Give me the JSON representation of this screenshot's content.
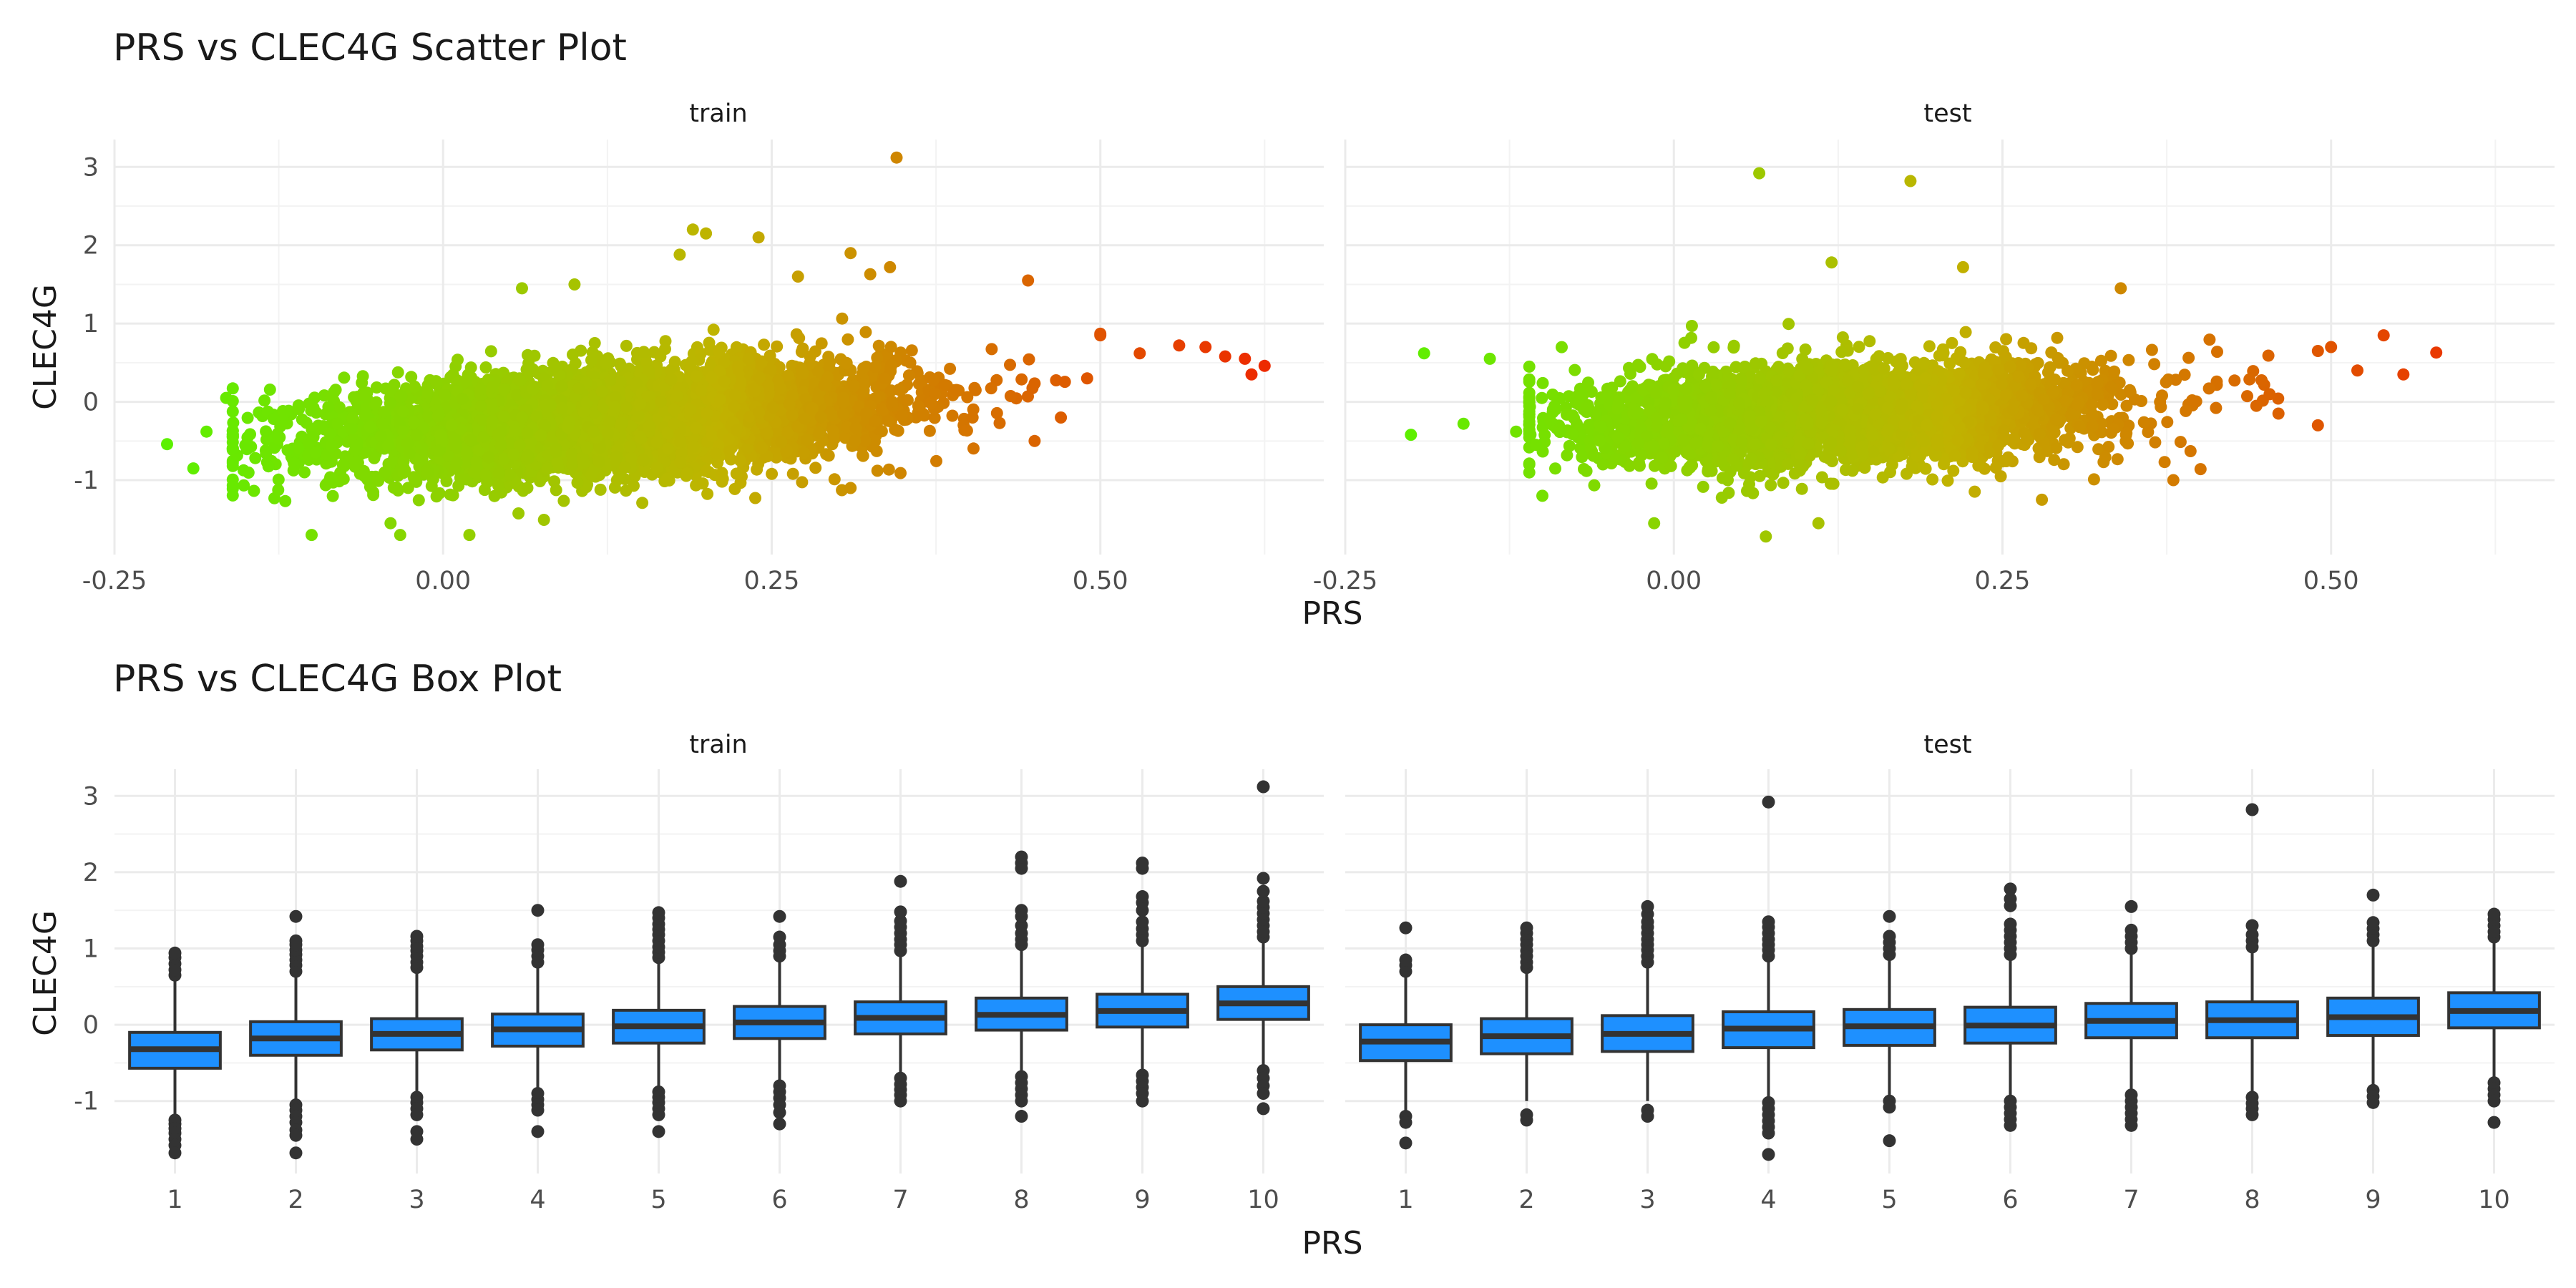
{
  "colors": {
    "low": "#5cf000",
    "mid": "#c0b300",
    "high": "#ee2800",
    "box_fill": "#1e90ff",
    "box_line": "#333333",
    "outlier": "#333333"
  },
  "chart_data": [
    {
      "type": "scatter",
      "title": "PRS vs CLEC4G Scatter Plot",
      "xlabel": "PRS",
      "ylabel": "CLEC4G",
      "xlim": [
        -0.25,
        0.67
      ],
      "ylim": [
        -1.95,
        3.35
      ],
      "x_ticks": [
        -0.25,
        0.0,
        0.25,
        0.5
      ],
      "x_tick_labels": [
        "-0.25",
        "0.00",
        "0.25",
        "0.50"
      ],
      "y_ticks": [
        -1,
        0,
        1,
        2,
        3
      ],
      "y_tick_labels": [
        "-1",
        "0",
        "1",
        "2",
        "3"
      ],
      "grid": true,
      "color_encodes": "PRS",
      "panels": [
        {
          "label": "train",
          "cloud": {
            "n": 5200,
            "x_mean": 0.13,
            "x_sd": 0.105,
            "x_range": [
              -0.16,
              0.5
            ],
            "y_intercept": -0.3,
            "y_slope": 2.1,
            "y_sd": 0.32,
            "y_range": [
              -1.7,
              1.6
            ]
          },
          "points": [
            {
              "x": -0.21,
              "y": -0.54
            },
            {
              "x": -0.19,
              "y": -0.85
            },
            {
              "x": -0.18,
              "y": -0.38
            },
            {
              "x": -0.165,
              "y": 0.05
            },
            {
              "x": 0.345,
              "y": 3.12
            },
            {
              "x": 0.19,
              "y": 2.2
            },
            {
              "x": 0.2,
              "y": 2.15
            },
            {
              "x": 0.24,
              "y": 2.1
            },
            {
              "x": 0.18,
              "y": 1.88
            },
            {
              "x": 0.31,
              "y": 1.9
            },
            {
              "x": 0.27,
              "y": 1.6
            },
            {
              "x": 0.445,
              "y": 1.55
            },
            {
              "x": 0.34,
              "y": 1.72
            },
            {
              "x": 0.325,
              "y": 1.63
            },
            {
              "x": 0.56,
              "y": 0.72
            },
            {
              "x": 0.58,
              "y": 0.7
            },
            {
              "x": 0.595,
              "y": 0.58
            },
            {
              "x": 0.61,
              "y": 0.55
            },
            {
              "x": 0.625,
              "y": 0.46
            },
            {
              "x": 0.615,
              "y": 0.35
            },
            {
              "x": 0.53,
              "y": 0.62
            },
            {
              "x": 0.5,
              "y": 0.85
            },
            {
              "x": 0.49,
              "y": 0.3
            },
            {
              "x": -0.1,
              "y": -1.7
            },
            {
              "x": 0.02,
              "y": -1.7
            },
            {
              "x": -0.04,
              "y": -1.55
            },
            {
              "x": 0.31,
              "y": -1.1
            },
            {
              "x": 0.45,
              "y": -0.5
            },
            {
              "x": 0.47,
              "y": -0.2
            },
            {
              "x": 0.1,
              "y": 1.5
            },
            {
              "x": 0.06,
              "y": 1.45
            }
          ]
        },
        {
          "label": "test",
          "cloud": {
            "n": 3600,
            "x_mean": 0.13,
            "x_sd": 0.1,
            "x_range": [
              -0.11,
              0.48
            ],
            "y_intercept": -0.2,
            "y_slope": 1.3,
            "y_sd": 0.31,
            "y_range": [
              -1.5,
              1.5
            ]
          },
          "points": [
            {
              "x": -0.19,
              "y": 0.62
            },
            {
              "x": -0.2,
              "y": -0.42
            },
            {
              "x": -0.16,
              "y": -0.28
            },
            {
              "x": -0.14,
              "y": 0.55
            },
            {
              "x": -0.12,
              "y": -0.38
            },
            {
              "x": -0.1,
              "y": -1.2
            },
            {
              "x": 0.065,
              "y": 2.92
            },
            {
              "x": 0.18,
              "y": 2.82
            },
            {
              "x": 0.22,
              "y": 1.72
            },
            {
              "x": 0.12,
              "y": 1.78
            },
            {
              "x": 0.58,
              "y": 0.63
            },
            {
              "x": 0.49,
              "y": 0.65
            },
            {
              "x": 0.5,
              "y": 0.7
            },
            {
              "x": 0.52,
              "y": 0.4
            },
            {
              "x": 0.54,
              "y": 0.85
            },
            {
              "x": 0.555,
              "y": 0.35
            },
            {
              "x": 0.49,
              "y": -0.3
            },
            {
              "x": 0.46,
              "y": -0.15
            },
            {
              "x": 0.38,
              "y": -1.0
            },
            {
              "x": 0.28,
              "y": -1.25
            },
            {
              "x": 0.07,
              "y": -1.72
            },
            {
              "x": 0.11,
              "y": -1.55
            },
            {
              "x": -0.015,
              "y": -1.55
            },
            {
              "x": 0.34,
              "y": 1.45
            }
          ]
        }
      ]
    },
    {
      "type": "box",
      "title": "PRS vs CLEC4G Box Plot",
      "xlabel": "PRS",
      "ylabel": "CLEC4G",
      "categories": [
        "1",
        "2",
        "3",
        "4",
        "5",
        "6",
        "7",
        "8",
        "9",
        "10"
      ],
      "ylim": [
        -1.95,
        3.35
      ],
      "y_ticks": [
        -1,
        0,
        1,
        2,
        3
      ],
      "y_tick_labels": [
        "-1",
        "0",
        "1",
        "2",
        "3"
      ],
      "grid": true,
      "panels": [
        {
          "label": "train",
          "boxes": [
            {
              "category": "1",
              "q1": -0.57,
              "median": -0.32,
              "q3": -0.1,
              "whisker_low": -1.2,
              "whisker_high": 0.6,
              "outliers": [
                0.65,
                0.72,
                0.8,
                0.88,
                0.94,
                -1.25,
                -1.3,
                -1.36,
                -1.42,
                -1.5,
                -1.58,
                -1.68
              ]
            },
            {
              "category": "2",
              "q1": -0.4,
              "median": -0.18,
              "q3": 0.04,
              "whisker_low": -1.0,
              "whisker_high": 0.65,
              "outliers": [
                0.7,
                0.78,
                0.85,
                0.92,
                0.98,
                1.05,
                1.1,
                1.42,
                -1.05,
                -1.12,
                -1.2,
                -1.28,
                -1.38,
                -1.45,
                -1.68
              ]
            },
            {
              "category": "3",
              "q1": -0.33,
              "median": -0.12,
              "q3": 0.08,
              "whisker_low": -0.9,
              "whisker_high": 0.7,
              "outliers": [
                0.75,
                0.82,
                0.9,
                0.97,
                1.03,
                1.1,
                1.16,
                -0.95,
                -1.02,
                -1.1,
                -1.18,
                -1.4,
                -1.5
              ]
            },
            {
              "category": "4",
              "q1": -0.28,
              "median": -0.06,
              "q3": 0.14,
              "whisker_low": -0.85,
              "whisker_high": 0.78,
              "outliers": [
                0.82,
                0.9,
                0.98,
                1.05,
                1.5,
                -0.9,
                -0.98,
                -1.05,
                -1.12,
                -1.4
              ]
            },
            {
              "category": "5",
              "q1": -0.24,
              "median": -0.02,
              "q3": 0.19,
              "whisker_low": -0.82,
              "whisker_high": 0.82,
              "outliers": [
                0.88,
                0.95,
                1.02,
                1.1,
                1.18,
                1.25,
                1.32,
                1.4,
                1.47,
                -0.88,
                -0.95,
                -1.02,
                -1.1,
                -1.18,
                -1.4
              ]
            },
            {
              "category": "6",
              "q1": -0.18,
              "median": 0.03,
              "q3": 0.24,
              "whisker_low": -0.78,
              "whisker_high": 0.86,
              "outliers": [
                0.9,
                0.97,
                1.05,
                1.15,
                1.42,
                -0.8,
                -0.88,
                -0.96,
                -1.05,
                -1.15,
                -1.3
              ]
            },
            {
              "category": "7",
              "q1": -0.12,
              "median": 0.09,
              "q3": 0.3,
              "whisker_low": -0.66,
              "whisker_high": 0.92,
              "outliers": [
                0.97,
                1.05,
                1.12,
                1.2,
                1.28,
                1.36,
                1.48,
                1.88,
                -0.7,
                -0.78,
                -0.85,
                -0.92,
                -1.0
              ]
            },
            {
              "category": "8",
              "q1": -0.07,
              "median": 0.13,
              "q3": 0.35,
              "whisker_low": -0.62,
              "whisker_high": 1.0,
              "outliers": [
                1.05,
                1.12,
                1.2,
                1.3,
                1.42,
                1.5,
                2.05,
                2.12,
                2.2,
                -0.68,
                -0.76,
                -0.84,
                -0.92,
                -1.0,
                -1.2
              ]
            },
            {
              "category": "9",
              "q1": -0.03,
              "median": 0.18,
              "q3": 0.4,
              "whisker_low": -0.6,
              "whisker_high": 1.05,
              "outliers": [
                1.1,
                1.18,
                1.26,
                1.35,
                1.5,
                1.6,
                1.68,
                2.05,
                2.12,
                -0.66,
                -0.74,
                -0.82,
                -0.9,
                -1.0
              ]
            },
            {
              "category": "10",
              "q1": 0.07,
              "median": 0.28,
              "q3": 0.5,
              "whisker_low": -0.55,
              "whisker_high": 1.08,
              "outliers": [
                1.15,
                1.22,
                1.3,
                1.38,
                1.46,
                1.54,
                1.62,
                1.75,
                1.92,
                3.12,
                -0.6,
                -0.7,
                -0.8,
                -0.9,
                -1.1
              ]
            }
          ]
        },
        {
          "label": "test",
          "boxes": [
            {
              "category": "1",
              "q1": -0.47,
              "median": -0.22,
              "q3": 0.0,
              "whisker_low": -1.12,
              "whisker_high": 0.65,
              "outliers": [
                0.7,
                0.78,
                0.85,
                1.27,
                -1.2,
                -1.28,
                -1.55
              ]
            },
            {
              "category": "2",
              "q1": -0.38,
              "median": -0.15,
              "q3": 0.08,
              "whisker_low": -1.0,
              "whisker_high": 0.7,
              "outliers": [
                0.75,
                0.82,
                0.9,
                0.97,
                1.05,
                1.12,
                1.2,
                1.27,
                -1.18,
                -1.25
              ]
            },
            {
              "category": "3",
              "q1": -0.35,
              "median": -0.12,
              "q3": 0.12,
              "whisker_low": -1.0,
              "whisker_high": 0.78,
              "outliers": [
                0.82,
                0.9,
                0.98,
                1.05,
                1.12,
                1.2,
                1.28,
                1.35,
                1.45,
                1.55,
                -1.12,
                -1.2
              ]
            },
            {
              "category": "4",
              "q1": -0.3,
              "median": -0.05,
              "q3": 0.17,
              "whisker_low": -0.98,
              "whisker_high": 0.85,
              "outliers": [
                0.9,
                0.98,
                1.05,
                1.12,
                1.2,
                1.28,
                1.35,
                2.92,
                -1.02,
                -1.1,
                -1.18,
                -1.26,
                -1.34,
                -1.42,
                -1.7
              ]
            },
            {
              "category": "5",
              "q1": -0.27,
              "median": -0.02,
              "q3": 0.2,
              "whisker_low": -0.95,
              "whisker_high": 0.87,
              "outliers": [
                0.92,
                1.0,
                1.08,
                1.16,
                1.42,
                -1.0,
                -1.08,
                -1.52
              ]
            },
            {
              "category": "6",
              "q1": -0.24,
              "median": -0.01,
              "q3": 0.23,
              "whisker_low": -0.95,
              "whisker_high": 0.88,
              "outliers": [
                0.92,
                1.0,
                1.08,
                1.16,
                1.24,
                1.32,
                1.56,
                1.65,
                1.78,
                -1.0,
                -1.08,
                -1.16,
                -1.24,
                -1.32
              ]
            },
            {
              "category": "7",
              "q1": -0.17,
              "median": 0.05,
              "q3": 0.28,
              "whisker_low": -0.88,
              "whisker_high": 0.95,
              "outliers": [
                1.0,
                1.08,
                1.16,
                1.24,
                1.55,
                -0.92,
                -1.0,
                -1.08,
                -1.16,
                -1.24,
                -1.32
              ]
            },
            {
              "category": "8",
              "q1": -0.17,
              "median": 0.06,
              "q3": 0.3,
              "whisker_low": -0.9,
              "whisker_high": 0.97,
              "outliers": [
                1.02,
                1.1,
                1.18,
                1.3,
                2.82,
                -0.95,
                -1.03,
                -1.1,
                -1.18
              ]
            },
            {
              "category": "9",
              "q1": -0.14,
              "median": 0.1,
              "q3": 0.35,
              "whisker_low": -0.82,
              "whisker_high": 1.05,
              "outliers": [
                1.1,
                1.18,
                1.26,
                1.34,
                1.7,
                -0.86,
                -0.94,
                -1.02
              ]
            },
            {
              "category": "10",
              "q1": -0.04,
              "median": 0.18,
              "q3": 0.42,
              "whisker_low": -0.72,
              "whisker_high": 1.1,
              "outliers": [
                1.15,
                1.22,
                1.3,
                1.38,
                1.45,
                -0.76,
                -0.84,
                -0.92,
                -1.0,
                -1.28
              ]
            }
          ]
        }
      ]
    }
  ]
}
